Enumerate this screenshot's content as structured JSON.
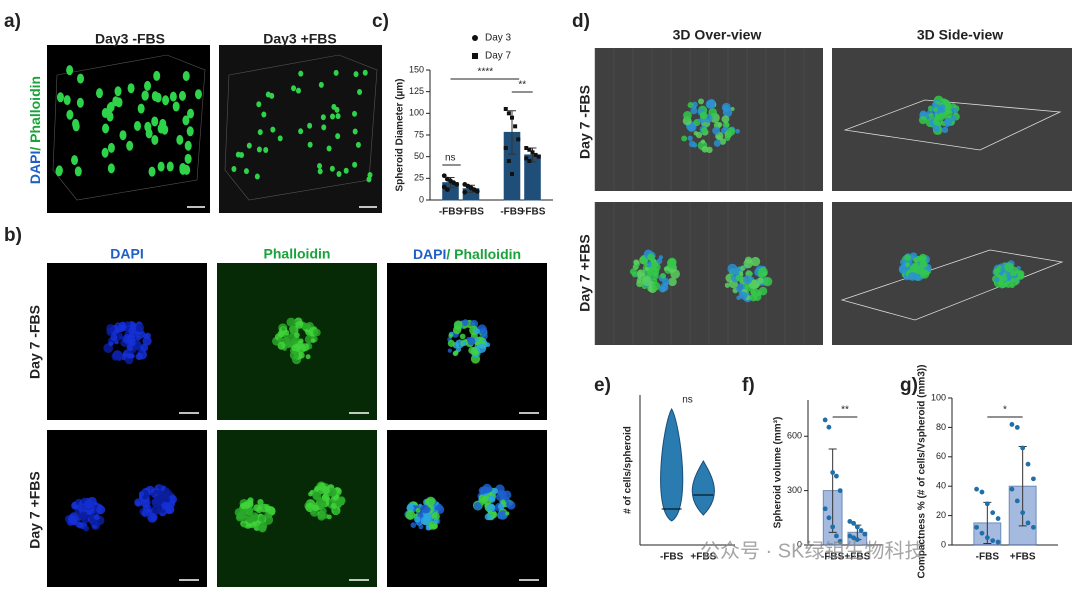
{
  "figure": {
    "panel_labels": [
      "a)",
      "b)",
      "c)",
      "d)",
      "e)",
      "f)",
      "g)"
    ],
    "a": {
      "titles": [
        "Day3 -FBS",
        "Day3 +FBS"
      ],
      "side_label": [
        "DAPI",
        "/ Phalloidin"
      ]
    },
    "b": {
      "titles": [
        "DAPI",
        "Phalloidin"
      ],
      "merge_title": [
        "DAPI",
        "/ Phalloidin"
      ],
      "rows": [
        "Day 7 -FBS",
        "Day 7 +FBS"
      ]
    },
    "d": {
      "titles": [
        "3D Over-view",
        "3D Side-view"
      ],
      "rows": [
        "Day 7 -FBS",
        "Day 7 +FBS"
      ]
    },
    "watermark": "公众号 · SK绿钼生物科技"
  },
  "chart_data": [
    {
      "type": "bar",
      "ylabel": "Spheroid Diameter (µm)",
      "categories": [
        "-FBS",
        "+FBS"
      ],
      "markers": [
        "circle",
        "square"
      ],
      "series": [
        {
          "name": "Day 3",
          "color": "#1f4e79",
          "values": [
            20,
            13
          ],
          "errors": [
            6,
            4
          ],
          "points": [
            [
              28,
              24,
              22,
              20,
              18,
              15,
              12
            ],
            [
              18,
              16,
              14,
              12,
              10,
              9
            ]
          ]
        },
        {
          "name": "Day 7",
          "color": "#1f4e79",
          "values": [
            78,
            52
          ],
          "errors": [
            25,
            8
          ],
          "points": [
            [
              105,
              100,
              95,
              85,
              70,
              60,
              45,
              30
            ],
            [
              60,
              58,
              55,
              52,
              50,
              48,
              45
            ]
          ]
        }
      ],
      "ylim": [
        0,
        150
      ],
      "yticks": [
        0,
        25,
        50,
        75,
        100,
        125,
        150
      ],
      "annotations": [
        "ns",
        "****",
        "**"
      ]
    },
    {
      "type": "violin",
      "ylabel": "# of cells/spheroid",
      "categories": [
        "-FBS",
        "+FBS"
      ],
      "min": [
        12,
        15
      ],
      "max": [
        68,
        42
      ],
      "median": [
        18,
        25
      ],
      "color": "#2a7bb0",
      "ylim": [
        0,
        75
      ],
      "annotations": [
        "ns"
      ]
    },
    {
      "type": "bar",
      "ylabel": "Spheroid volume (mm³)",
      "categories": [
        "-FBS",
        "+FBS"
      ],
      "values": [
        300,
        70
      ],
      "errors": [
        230,
        40
      ],
      "points": [
        [
          690,
          650,
          400,
          380,
          300,
          200,
          150,
          100,
          50,
          20
        ],
        [
          130,
          120,
          100,
          80,
          60,
          50,
          40,
          30
        ]
      ],
      "color": "#8fa9d8",
      "point_color": "#1f6fa8",
      "ylim": [
        0,
        800
      ],
      "yticks": [
        0,
        300,
        600
      ],
      "annotations": [
        "**"
      ]
    },
    {
      "type": "bar",
      "ylabel": "Compactness % (# of cells/Vspheroid (mm3))",
      "categories": [
        "-FBS",
        "+FBS"
      ],
      "values": [
        15,
        40
      ],
      "errors": [
        14,
        27
      ],
      "points": [
        [
          38,
          36,
          28,
          22,
          18,
          12,
          8,
          5,
          3,
          2
        ],
        [
          82,
          80,
          66,
          55,
          45,
          38,
          30,
          22,
          15,
          12
        ]
      ],
      "color": "#8fa9d8",
      "point_color": "#1f6fa8",
      "ylim": [
        0,
        100
      ],
      "yticks": [
        0,
        20,
        40,
        60,
        80,
        100
      ],
      "annotations": [
        "*"
      ]
    }
  ]
}
